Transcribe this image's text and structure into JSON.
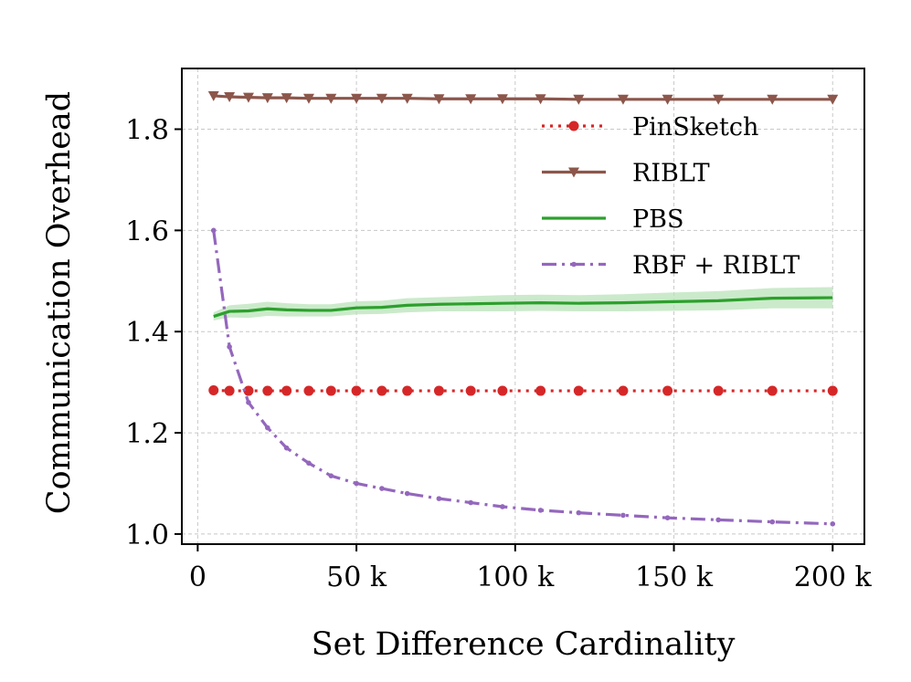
{
  "chart_data": {
    "type": "line",
    "xlabel": "Set Difference Cardinality",
    "ylabel": "Communication Overhead",
    "xlim": [
      -5000,
      210000
    ],
    "ylim": [
      0.98,
      1.92
    ],
    "xticks": [
      0,
      50000,
      100000,
      150000,
      200000
    ],
    "xtick_labels": [
      "0",
      "50 k",
      "100 k",
      "150 k",
      "200 k"
    ],
    "yticks": [
      1.0,
      1.2,
      1.4,
      1.6,
      1.8
    ],
    "ytick_labels": [
      "1.0",
      "1.2",
      "1.4",
      "1.6",
      "1.8"
    ],
    "grid": true,
    "legend_position": "top-right",
    "series": [
      {
        "name": "PinSketch",
        "color": "#d62728",
        "style": "dotted",
        "marker": "circle",
        "x": [
          5000,
          10000,
          16000,
          22000,
          28000,
          35000,
          42000,
          50000,
          58000,
          66000,
          76000,
          86000,
          96000,
          108000,
          120000,
          134000,
          148000,
          164000,
          181000,
          200000
        ],
        "y": [
          1.284,
          1.283,
          1.283,
          1.283,
          1.283,
          1.283,
          1.283,
          1.283,
          1.283,
          1.283,
          1.283,
          1.283,
          1.283,
          1.283,
          1.283,
          1.283,
          1.283,
          1.283,
          1.283,
          1.283
        ]
      },
      {
        "name": "RIBLT",
        "color": "#8c564b",
        "style": "solid",
        "marker": "triangle-down",
        "x": [
          5000,
          10000,
          16000,
          22000,
          28000,
          35000,
          42000,
          50000,
          58000,
          66000,
          76000,
          86000,
          96000,
          108000,
          120000,
          134000,
          148000,
          164000,
          181000,
          200000
        ],
        "y": [
          1.866,
          1.864,
          1.863,
          1.862,
          1.862,
          1.861,
          1.861,
          1.861,
          1.861,
          1.861,
          1.86,
          1.86,
          1.86,
          1.86,
          1.859,
          1.859,
          1.859,
          1.859,
          1.859,
          1.859
        ]
      },
      {
        "name": "PBS",
        "color": "#2ca02c",
        "style": "solid",
        "marker": "none",
        "band_color": "#b9e3b9",
        "x": [
          5000,
          10000,
          16000,
          22000,
          28000,
          35000,
          42000,
          50000,
          58000,
          66000,
          76000,
          86000,
          96000,
          108000,
          120000,
          134000,
          148000,
          164000,
          181000,
          200000
        ],
        "y": [
          1.43,
          1.44,
          1.441,
          1.445,
          1.443,
          1.442,
          1.442,
          1.447,
          1.448,
          1.452,
          1.454,
          1.455,
          1.456,
          1.457,
          1.456,
          1.457,
          1.459,
          1.461,
          1.466,
          1.467
        ],
        "band": [
          0.008,
          0.012,
          0.014,
          0.014,
          0.013,
          0.012,
          0.012,
          0.013,
          0.013,
          0.014,
          0.014,
          0.015,
          0.016,
          0.016,
          0.016,
          0.017,
          0.018,
          0.019,
          0.02,
          0.021
        ]
      },
      {
        "name": "RBF + RIBLT",
        "color": "#9467bd",
        "style": "dashdot",
        "marker": "dot",
        "x": [
          5000,
          10000,
          16000,
          22000,
          28000,
          35000,
          42000,
          50000,
          58000,
          66000,
          76000,
          86000,
          96000,
          108000,
          120000,
          134000,
          148000,
          164000,
          181000,
          200000
        ],
        "y": [
          1.6,
          1.37,
          1.26,
          1.21,
          1.17,
          1.14,
          1.115,
          1.1,
          1.09,
          1.08,
          1.07,
          1.062,
          1.054,
          1.047,
          1.042,
          1.037,
          1.032,
          1.028,
          1.024,
          1.02
        ]
      }
    ]
  }
}
